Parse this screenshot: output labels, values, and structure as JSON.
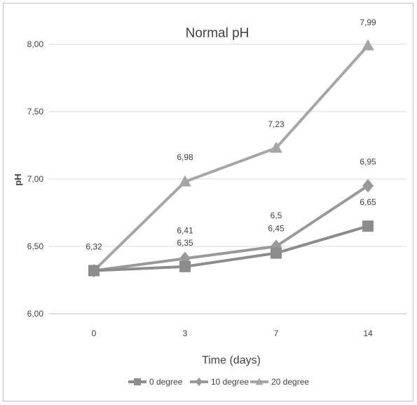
{
  "chart_data": {
    "type": "line",
    "title": "Normal pH",
    "xlabel": "Time (days)",
    "ylabel": "pH",
    "categories": [
      "0",
      "3",
      "7",
      "14"
    ],
    "y_ticks": [
      "6,00",
      "6,50",
      "7,00",
      "7,50",
      "8,00"
    ],
    "y_tick_values": [
      6.0,
      6.5,
      7.0,
      7.5,
      8.0
    ],
    "ylim": [
      6.0,
      8.0
    ],
    "grid": true,
    "legend_position": "bottom",
    "series": [
      {
        "name": "0 degree",
        "marker": "square",
        "color": "#8c8c8c",
        "values": [
          6.32,
          6.35,
          6.45,
          6.65
        ],
        "labels": [
          "6,32",
          "6,35",
          "6,45",
          "6,65"
        ]
      },
      {
        "name": "10 degree",
        "marker": "diamond",
        "color": "#999999",
        "values": [
          6.32,
          6.41,
          6.5,
          6.95
        ],
        "labels": [
          "6,32",
          "6,41",
          "6,5",
          "6,95"
        ]
      },
      {
        "name": "20 degree",
        "marker": "triangle",
        "color": "#a6a6a6",
        "values": [
          6.32,
          6.98,
          7.23,
          7.99
        ],
        "labels": [
          "6,32",
          "6,98",
          "7,23",
          "7,99"
        ]
      }
    ]
  }
}
